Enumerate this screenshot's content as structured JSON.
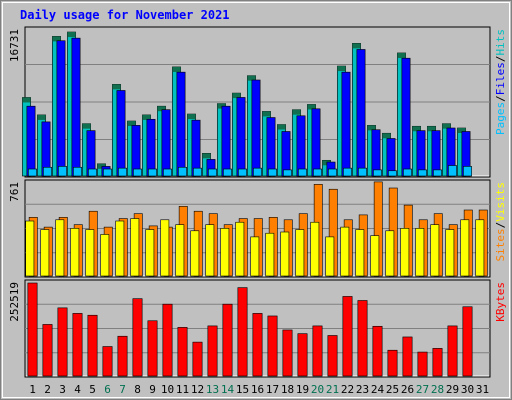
{
  "colors": {
    "background": "#c0c0c0",
    "frame": "#808080",
    "highlight": "#ffffff",
    "shadow": "#000000",
    "title": "#0000ff",
    "day_weekday": "#000000",
    "day_weekend": "#007050",
    "hits": "#00c0c0",
    "files": "#0000ff",
    "pages": "#00c0ff",
    "visits": "#ff8000",
    "sites": "#ffff00",
    "kbytes": "#ff0000"
  },
  "chart_data": {
    "type": "bar",
    "title": "Daily usage for November 2021",
    "days": [
      "1",
      "2",
      "3",
      "4",
      "5",
      "6",
      "7",
      "8",
      "9",
      "10",
      "11",
      "12",
      "13",
      "14",
      "15",
      "16",
      "17",
      "18",
      "19",
      "20",
      "21",
      "22",
      "23",
      "24",
      "25",
      "26",
      "27",
      "28",
      "29",
      "30",
      "31"
    ],
    "weekend_days": [
      "6",
      "7",
      "13",
      "14",
      "20",
      "21",
      "27",
      "28"
    ],
    "panels": [
      {
        "id": "usage",
        "ymax_label": "16731",
        "ylim": [
          0,
          16731
        ],
        "legend": [
          "Pages",
          "/",
          "Files",
          "/",
          "Hits"
        ],
        "series": [
          {
            "name": "Hits",
            "values": [
              9000,
              7000,
              16000,
              16500,
              6000,
              1400,
              10500,
              6300,
              7000,
              8000,
              12500,
              7100,
              2600,
              8300,
              9500,
              11500,
              7400,
              5900,
              7600,
              8200,
              1800,
              12600,
              15200,
              5800,
              4900,
              14100,
              5700,
              5700,
              6000,
              5500,
              0
            ]
          },
          {
            "name": "Files",
            "values": [
              8000,
              6200,
              15500,
              15800,
              5200,
              1100,
              9800,
              5800,
              6500,
              7600,
              11900,
              6400,
              1900,
              8000,
              9000,
              11000,
              6700,
              5100,
              6900,
              7700,
              1600,
              11900,
              14500,
              5300,
              4300,
              13500,
              5200,
              5200,
              5500,
              5100,
              0
            ]
          },
          {
            "name": "Pages",
            "values": [
              800,
              1000,
              1100,
              1000,
              800,
              800,
              900,
              800,
              800,
              800,
              1000,
              900,
              800,
              800,
              800,
              900,
              800,
              700,
              800,
              800,
              800,
              900,
              900,
              700,
              600,
              800,
              700,
              700,
              1200,
              1100,
              0
            ]
          }
        ]
      },
      {
        "id": "visitors",
        "ymax_label": "761",
        "ylim": [
          0,
          761
        ],
        "legend": [
          "Sites",
          "/",
          "Visits"
        ],
        "series": [
          {
            "name": "Visits",
            "values": [
              480,
              400,
              480,
              420,
              530,
              400,
              470,
              510,
              410,
              400,
              570,
              530,
              510,
              420,
              470,
              470,
              480,
              460,
              510,
              750,
              710,
              460,
              500,
              770,
              720,
              580,
              460,
              510,
              420,
              540,
              540
            ]
          },
          {
            "name": "Sites",
            "values": [
              450,
              380,
              460,
              390,
              380,
              340,
              450,
              470,
              380,
              460,
              420,
              370,
              420,
              390,
              440,
              320,
              350,
              360,
              380,
              440,
              320,
              400,
              380,
              330,
              370,
              390,
              390,
              420,
              380,
              460,
              460
            ]
          }
        ]
      },
      {
        "id": "kbytes",
        "ymax_label": "252519",
        "ylim": [
          0,
          252519
        ],
        "legend": [
          "KBytes"
        ],
        "series": [
          {
            "name": "KBytes",
            "values": [
              252519,
              140000,
              185000,
              170000,
              165000,
              80000,
              108000,
              210000,
              150000,
              195000,
              132000,
              92000,
              136000,
              195000,
              240000,
              170000,
              163000,
              125000,
              115000,
              136000,
              110000,
              216000,
              205000,
              135000,
              70000,
              106000,
              65000,
              75000,
              136000,
              188000,
              0
            ]
          }
        ]
      }
    ]
  }
}
